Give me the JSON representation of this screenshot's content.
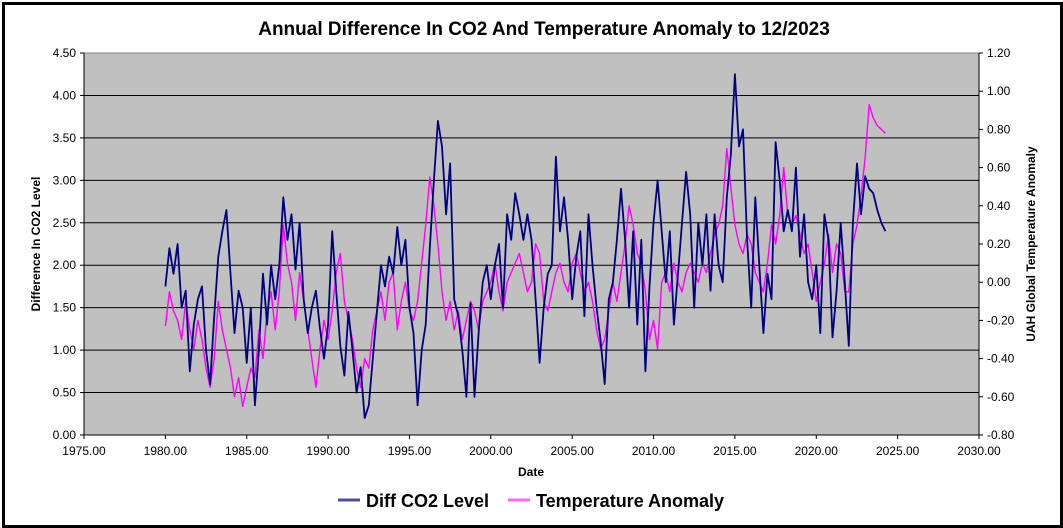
{
  "chart_data": {
    "type": "line",
    "title": "Annual Difference In CO2  And Temperature Anomaly to 12/2023",
    "xlabel": "Date",
    "ylabel": "Difference In CO2 Level",
    "y2label": "UAH Global Temperature Anomaly",
    "xlim": [
      1975,
      2030
    ],
    "ylim": [
      0,
      4.5
    ],
    "y2lim": [
      -0.8,
      1.2
    ],
    "x_ticks": [
      "1975.00",
      "1980.00",
      "1985.00",
      "1990.00",
      "1995.00",
      "2000.00",
      "2005.00",
      "2010.00",
      "2015.00",
      "2020.00",
      "2025.00",
      "2030.00"
    ],
    "y_ticks": [
      "0.00",
      "0.50",
      "1.00",
      "1.50",
      "2.00",
      "2.50",
      "3.00",
      "3.50",
      "4.00",
      "4.50"
    ],
    "y2_ticks": [
      "-0.80",
      "-0.60",
      "-0.40",
      "-0.20",
      "0.00",
      "0.20",
      "0.40",
      "0.60",
      "0.80",
      "1.00",
      "1.20"
    ],
    "grid": "horizontal",
    "legend_position": "bottom",
    "background": "#C0C0C0",
    "x_start": 1980.0,
    "x_step": 0.25,
    "series": [
      {
        "name": "Diff CO2 Level",
        "axis": "left",
        "color": "#000080",
        "values": [
          1.75,
          2.2,
          1.9,
          2.25,
          1.5,
          1.7,
          0.75,
          1.3,
          1.6,
          1.75,
          1.0,
          0.6,
          1.4,
          2.1,
          2.4,
          2.65,
          1.9,
          1.2,
          1.7,
          1.5,
          0.85,
          1.5,
          0.35,
          1.0,
          1.9,
          1.3,
          2.0,
          1.6,
          2.0,
          2.8,
          2.3,
          2.6,
          1.95,
          2.5,
          1.6,
          1.2,
          1.5,
          1.7,
          1.25,
          0.9,
          1.3,
          2.4,
          1.7,
          1.05,
          0.7,
          1.45,
          1.0,
          0.5,
          0.8,
          0.2,
          0.35,
          0.9,
          1.45,
          2.0,
          1.75,
          2.1,
          1.9,
          2.45,
          2.0,
          2.3,
          1.5,
          1.2,
          0.35,
          1.0,
          1.3,
          2.2,
          3.0,
          3.7,
          3.4,
          2.6,
          3.2,
          1.6,
          1.4,
          1.0,
          0.45,
          1.55,
          0.45,
          1.2,
          1.8,
          2.0,
          1.6,
          2.0,
          2.25,
          1.5,
          2.6,
          2.3,
          2.85,
          2.6,
          2.3,
          2.6,
          2.3,
          1.6,
          0.85,
          1.5,
          1.9,
          2.0,
          3.28,
          2.4,
          2.8,
          2.3,
          1.6,
          2.1,
          2.4,
          1.4,
          2.6,
          2.0,
          1.5,
          1.1,
          0.6,
          1.6,
          1.8,
          2.3,
          2.9,
          2.3,
          1.5,
          2.4,
          1.3,
          2.3,
          0.75,
          1.75,
          2.5,
          3.0,
          2.4,
          1.8,
          2.4,
          1.3,
          1.9,
          2.5,
          3.1,
          2.6,
          1.5,
          2.5,
          2.0,
          2.6,
          1.7,
          2.6,
          2.0,
          1.8,
          2.8,
          3.3,
          4.25,
          3.4,
          3.6,
          2.3,
          1.5,
          2.8,
          2.0,
          1.2,
          1.9,
          1.6,
          3.45,
          3.0,
          2.4,
          2.65,
          2.4,
          3.15,
          2.1,
          2.6,
          1.8,
          1.6,
          2.0,
          1.2,
          2.6,
          2.3,
          1.15,
          1.7,
          2.5,
          1.8,
          1.05,
          2.5,
          3.2,
          2.6,
          3.05,
          2.9,
          2.85,
          2.65,
          2.5,
          2.4
        ]
      },
      {
        "name": "Temperature Anomaly",
        "axis": "right",
        "color": "#FF00FF",
        "values": [
          -0.23,
          -0.05,
          -0.15,
          -0.2,
          -0.3,
          -0.1,
          -0.25,
          -0.35,
          -0.2,
          -0.3,
          -0.45,
          -0.55,
          -0.4,
          -0.1,
          -0.25,
          -0.35,
          -0.45,
          -0.6,
          -0.5,
          -0.65,
          -0.55,
          -0.45,
          -0.5,
          -0.25,
          -0.4,
          -0.15,
          -0.05,
          -0.25,
          -0.05,
          0.3,
          0.1,
          0.0,
          -0.2,
          0.05,
          -0.1,
          -0.25,
          -0.4,
          -0.55,
          -0.35,
          -0.2,
          -0.3,
          -0.15,
          0.05,
          0.15,
          -0.1,
          -0.2,
          -0.3,
          -0.45,
          -0.55,
          -0.4,
          -0.45,
          -0.25,
          -0.15,
          -0.05,
          -0.2,
          0.0,
          0.05,
          -0.25,
          -0.1,
          0.0,
          -0.15,
          -0.2,
          -0.1,
          0.1,
          0.3,
          0.55,
          0.4,
          0.2,
          -0.05,
          -0.2,
          -0.1,
          -0.25,
          -0.15,
          -0.3,
          -0.2,
          -0.1,
          -0.15,
          -0.25,
          -0.1,
          -0.05,
          0.0,
          0.1,
          -0.05,
          -0.15,
          0.0,
          0.05,
          0.1,
          0.15,
          0.05,
          -0.05,
          0.0,
          0.2,
          0.15,
          -0.1,
          -0.15,
          -0.05,
          0.05,
          0.1,
          0.0,
          -0.05,
          0.1,
          0.15,
          0.05,
          -0.05,
          0.0,
          -0.1,
          -0.25,
          -0.35,
          -0.3,
          -0.15,
          0.0,
          -0.1,
          0.05,
          0.2,
          0.4,
          0.3,
          0.15,
          0.1,
          -0.05,
          -0.3,
          -0.2,
          -0.35,
          0.0,
          0.05,
          -0.05,
          0.1,
          0.0,
          -0.05,
          0.05,
          0.1,
          0.05,
          0.0,
          0.1,
          0.05,
          0.15,
          0.25,
          0.3,
          0.4,
          0.7,
          0.5,
          0.3,
          0.2,
          0.15,
          0.25,
          0.2,
          0.05,
          0.0,
          -0.05,
          0.1,
          0.3,
          0.2,
          0.35,
          0.6,
          0.35,
          0.3,
          0.35,
          0.25,
          0.15,
          0.2,
          0.05,
          -0.1,
          0.0,
          0.1,
          0.25,
          0.05,
          0.2,
          0.15,
          -0.05,
          -0.05,
          0.2,
          0.3,
          0.45,
          0.65,
          0.93,
          0.86,
          0.82,
          0.8,
          0.78
        ]
      }
    ]
  }
}
